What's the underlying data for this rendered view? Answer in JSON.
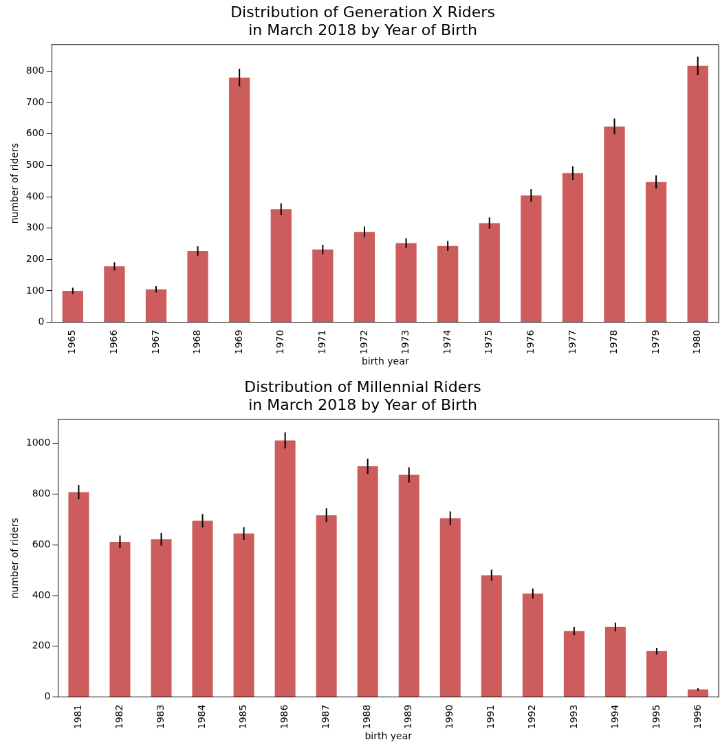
{
  "chart_data": [
    {
      "type": "bar",
      "title": "Distribution of Generation X Riders\nin March 2018 by Year of Birth",
      "xlabel": "birth year",
      "ylabel": "number of riders",
      "categories": [
        "1965",
        "1966",
        "1967",
        "1968",
        "1969",
        "1970",
        "1971",
        "1972",
        "1973",
        "1974",
        "1975",
        "1976",
        "1977",
        "1978",
        "1979",
        "1980"
      ],
      "values": [
        100,
        178,
        105,
        227,
        780,
        360,
        232,
        288,
        252,
        243,
        316,
        404,
        475,
        624,
        447,
        817
      ],
      "errors": [
        10,
        13,
        10,
        15,
        28,
        19,
        15,
        17,
        16,
        16,
        18,
        20,
        22,
        25,
        21,
        29
      ],
      "color": "#cd5c5c",
      "ylim": [
        0,
        885
      ],
      "yticks": [
        0,
        100,
        200,
        300,
        400,
        500,
        600,
        700,
        800
      ],
      "grid": false,
      "legend": false
    },
    {
      "type": "bar",
      "title": "Distribution of Millennial Riders\nin March 2018 by Year of Birth",
      "xlabel": "birth year",
      "ylabel": "number of riders",
      "categories": [
        "1981",
        "1982",
        "1983",
        "1984",
        "1985",
        "1986",
        "1987",
        "1988",
        "1989",
        "1990",
        "1991",
        "1992",
        "1993",
        "1994",
        "1995",
        "1996"
      ],
      "values": [
        808,
        612,
        622,
        695,
        645,
        1012,
        717,
        910,
        876,
        705,
        480,
        408,
        260,
        276,
        181,
        30
      ],
      "errors": [
        28,
        25,
        25,
        26,
        25,
        32,
        27,
        30,
        30,
        27,
        22,
        20,
        16,
        17,
        13,
        5
      ],
      "color": "#cd5c5c",
      "ylim": [
        0,
        1095
      ],
      "yticks": [
        0,
        200,
        400,
        600,
        800,
        1000
      ],
      "grid": false,
      "legend": false
    }
  ]
}
